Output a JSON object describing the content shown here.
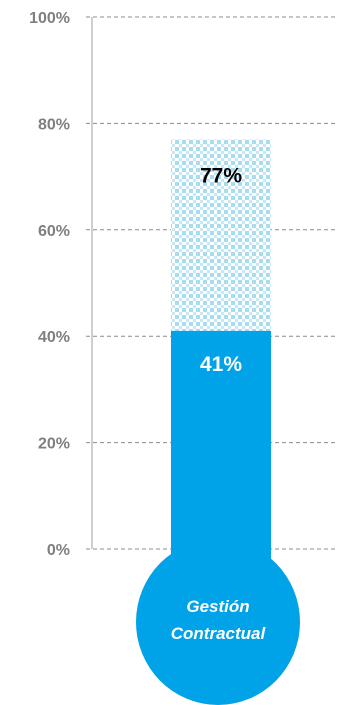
{
  "chart_data": {
    "type": "bar",
    "categories": [
      "Gestión Contractual"
    ],
    "category_lines": [
      "Gestión",
      "Contractual"
    ],
    "series": [
      {
        "values": [
          77
        ],
        "pattern": "dotted"
      },
      {
        "values": [
          41
        ],
        "pattern": "solid"
      }
    ],
    "data_labels": [
      "77%",
      "41%"
    ],
    "y_ticks": [
      0,
      20,
      40,
      60,
      80,
      100
    ],
    "y_tick_labels": [
      "0%",
      "20%",
      "40%",
      "60%",
      "80%",
      "100%"
    ],
    "ylim": [
      0,
      100
    ],
    "grid": true,
    "colors": {
      "fill": "#00a2e8",
      "dots": "#a9dcef",
      "grid": "#8c8c8c",
      "axis": "#bfbfbf",
      "label_dark": "#000000",
      "label_light": "#ffffff"
    }
  }
}
